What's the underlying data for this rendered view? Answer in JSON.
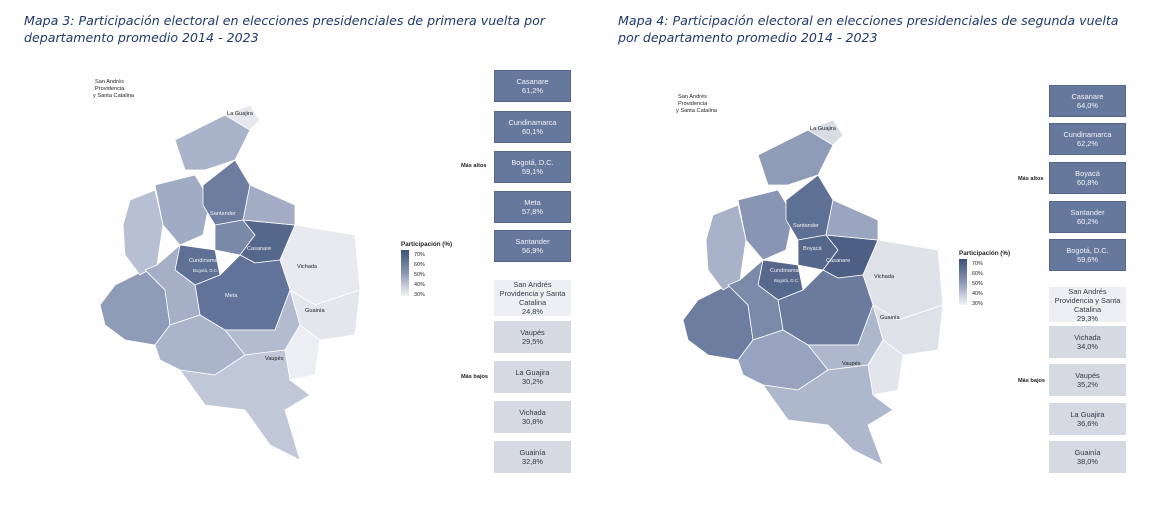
{
  "colors": {
    "high_box": "#66789b",
    "low_box": "#d4d9e2",
    "lowest_box": "#eeeff2",
    "title": "#1f3a6b",
    "legend_dark": "#3e5176",
    "legend_light": "#f2f3f7"
  },
  "maps": [
    {
      "title": "Mapa 3: Participación electoral en elecciones presidenciales de primera vuelta por departamento promedio 2014 - 2023",
      "legend": {
        "title": "Participación (%)",
        "ticks": [
          "70%",
          "60%",
          "50%",
          "40%",
          "30%"
        ]
      },
      "high_label": "Más altos",
      "low_label": "Más bajos",
      "high": [
        {
          "name": "Casanare",
          "value": "61,2%"
        },
        {
          "name": "Cundinamarca",
          "value": "60,1%"
        },
        {
          "name": "Bogotá, D.C.",
          "value": "59,1%"
        },
        {
          "name": "Meta",
          "value": "57,8%"
        },
        {
          "name": "Santander",
          "value": "56,9%"
        }
      ],
      "low": [
        {
          "name": "San Andrés Providencia y Santa Catalina",
          "value": "24,8%"
        },
        {
          "name": "Vaupés",
          "value": "29,5%"
        },
        {
          "name": "La Guajira",
          "value": "30,2%"
        },
        {
          "name": "Vichada",
          "value": "30,8%"
        },
        {
          "name": "Guainía",
          "value": "32,8%"
        }
      ],
      "map_labels": {
        "san_andres": [
          "San Andrés",
          "Providencia",
          "y Santa Catalina"
        ],
        "la_guajira": "La Guajira",
        "santander": "Santander",
        "casanare": "Casanare",
        "cundinamarca": "Cundinamarca",
        "bogota": "Bogotá, D.C.",
        "meta": "Meta",
        "vichada": "Vichada",
        "guainia": "Guainía",
        "vaupes": "Vaupés"
      }
    },
    {
      "title": "Mapa 4: Participación electoral en elecciones presidenciales de segunda vuelta por departamento promedio 2014 - 2023",
      "legend": {
        "title": "Participación (%)",
        "ticks": [
          "70%",
          "60%",
          "50%",
          "40%",
          "30%"
        ]
      },
      "high_label": "Más altos",
      "low_label": "Más bajos",
      "high": [
        {
          "name": "Casanare",
          "value": "64,0%"
        },
        {
          "name": "Cundinamarca",
          "value": "62,2%"
        },
        {
          "name": "Boyacá",
          "value": "60,8%"
        },
        {
          "name": "Santander",
          "value": "60,2%"
        },
        {
          "name": "Bogotá, D.C.",
          "value": "59,6%"
        }
      ],
      "low": [
        {
          "name": "San Andrés Providencia y Santa Catalina",
          "value": "29,3%"
        },
        {
          "name": "Vichada",
          "value": "34,0%"
        },
        {
          "name": "Vaupés",
          "value": "35,2%"
        },
        {
          "name": "La Guajira",
          "value": "36,6%"
        },
        {
          "name": "Guainía",
          "value": "38,0%"
        }
      ],
      "map_labels": {
        "san_andres": [
          "San Andrés",
          "Providencia",
          "y Santa Catalina"
        ],
        "la_guajira": "La Guajira",
        "santander": "Santander",
        "boyaca": "Boyacá",
        "casanare": "Casanare",
        "cundinamarca": "Cundinamarca",
        "bogota": "Bogotá, D.C.",
        "vichada": "Vichada",
        "guainia": "Guainía",
        "vaupes": "Vaupés"
      }
    }
  ]
}
